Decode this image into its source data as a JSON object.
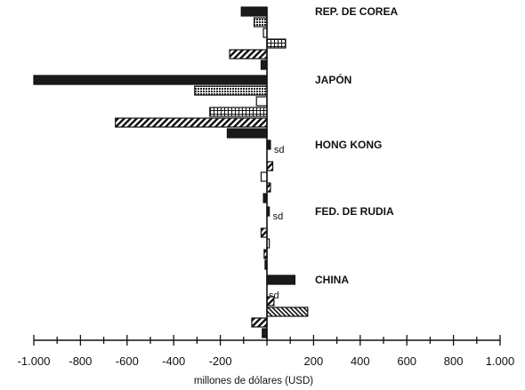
{
  "chart_data": {
    "type": "bar",
    "orientation": "horizontal",
    "xlabel": "millones de dólares (USD)",
    "xlim": [
      -1000,
      1000
    ],
    "xticks": [
      -1000,
      -800,
      -600,
      -400,
      -200,
      200,
      400,
      600,
      800,
      1000
    ],
    "xtick_labels": [
      "-1.000",
      "-800",
      "-600",
      "-400",
      "-200",
      "200",
      "400",
      "600",
      "800",
      "1.000"
    ],
    "grid": false,
    "legend": "none",
    "categories": [
      "REP. DE COREA",
      "JAPÓN",
      "HONG KONG",
      "FED. DE RUDIA",
      "CHINA"
    ],
    "not_available_label": "sd",
    "groups": [
      {
        "category": "REP. DE COREA",
        "bars": [
          {
            "pattern": "solid",
            "value": -110
          },
          {
            "pattern": "dots",
            "value": -55
          },
          {
            "pattern": "blank",
            "value": -15
          },
          {
            "pattern": "grid",
            "value": 80
          },
          {
            "pattern": "hatch",
            "value": -160
          },
          {
            "pattern": "solid",
            "value": -25
          }
        ]
      },
      {
        "category": "JAPÓN",
        "bars": [
          {
            "pattern": "solid",
            "value": -1000
          },
          {
            "pattern": "dots",
            "value": -310
          },
          {
            "pattern": "blank",
            "value": -45
          },
          {
            "pattern": "grid",
            "value": -245
          },
          {
            "pattern": "hatch",
            "value": -650
          },
          {
            "pattern": "solid",
            "value": -170
          }
        ]
      },
      {
        "category": "HONG KONG",
        "bars": [
          {
            "pattern": "solid",
            "value": 15,
            "note": "sd"
          },
          {
            "pattern": "blank",
            "value": null
          },
          {
            "pattern": "hatch",
            "value": 25
          },
          {
            "pattern": "blank",
            "value": -25
          },
          {
            "pattern": "hatch",
            "value": 15
          },
          {
            "pattern": "solid",
            "value": -15
          }
        ]
      },
      {
        "category": "FED. DE RUDIA",
        "bars": [
          {
            "pattern": "solid",
            "value": 10,
            "note": "sd"
          },
          {
            "pattern": "blank",
            "value": null
          },
          {
            "pattern": "hatch",
            "value": -25
          },
          {
            "pattern": "blank",
            "value": 10
          },
          {
            "pattern": "hatch",
            "value": -12
          },
          {
            "pattern": "solid",
            "value": -8
          }
        ]
      },
      {
        "category": "CHINA",
        "bars": [
          {
            "pattern": "solid",
            "value": 120
          },
          {
            "pattern": "blank",
            "value": null,
            "note": "sd"
          },
          {
            "pattern": "hatch",
            "value": 30
          },
          {
            "pattern": "rhatch",
            "value": 175
          },
          {
            "pattern": "hatch",
            "value": -65
          },
          {
            "pattern": "solid",
            "value": -20
          }
        ]
      }
    ]
  }
}
